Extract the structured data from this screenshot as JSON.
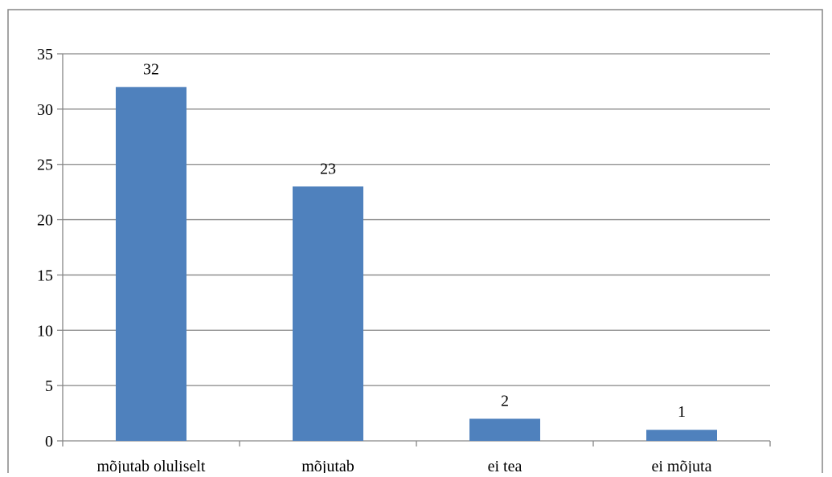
{
  "chart_data": {
    "type": "bar",
    "categories": [
      "mõjutab oluliselt",
      "mõjutab",
      "ei tea",
      "ei mõjuta"
    ],
    "values": [
      32,
      23,
      2,
      1
    ],
    "data_labels": [
      "32",
      "23",
      "2",
      "1"
    ],
    "ylim": [
      0,
      35
    ],
    "yticks": [
      0,
      5,
      10,
      15,
      20,
      25,
      30,
      35
    ],
    "ytick_labels": [
      "0",
      "5",
      "10",
      "15",
      "20",
      "25",
      "30",
      "35"
    ],
    "grid": true,
    "legend": "none",
    "colors": {
      "bar": "#4f81bd",
      "grid": "#868686",
      "axis": "#868686",
      "border": "#868686"
    }
  }
}
